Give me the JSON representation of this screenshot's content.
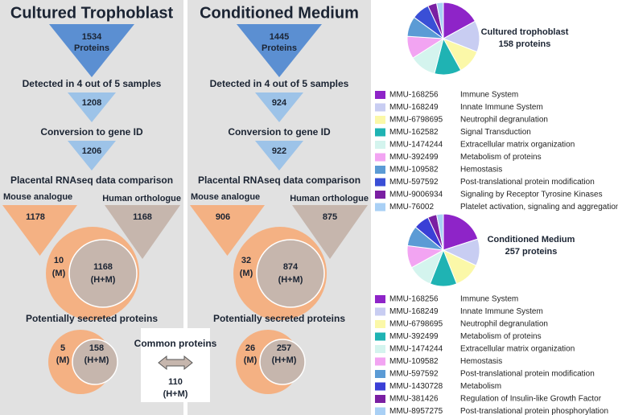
{
  "panels": [
    {
      "title": "Cultured Trophoblast",
      "start_count": 1534,
      "start_label": "Proteins",
      "step1": "Detected in 4 out of 5 samples",
      "count1": 1208,
      "step2": "Conversion to gene ID",
      "count2": 1206,
      "step3": "Placental RNAseq data comparison",
      "mouse_label": "Mouse analogue",
      "human_label": "Human orthologue",
      "mouse_count": 1178,
      "human_count": 1168,
      "overlap_m": 10,
      "overlap_m_tag": "(M)",
      "overlap_hm": 1168,
      "overlap_hm_tag": "(H+M)",
      "step4": "Potentially secreted proteins",
      "secreted_m": 5,
      "secreted_m_tag": "(M)",
      "secreted_hm": 158,
      "secreted_hm_tag": "(H+M)"
    },
    {
      "title": "Conditioned Medium",
      "start_count": 1445,
      "start_label": "Proteins",
      "step1": "Detected in 4 out of 5 samples",
      "count1": 924,
      "step2": "Conversion to gene ID",
      "count2": 922,
      "step3": "Placental RNAseq data comparison",
      "mouse_label": "Mouse analogue",
      "human_label": "Human orthologue",
      "mouse_count": 906,
      "human_count": 875,
      "overlap_m": 32,
      "overlap_m_tag": "(M)",
      "overlap_hm": 874,
      "overlap_hm_tag": "(H+M)",
      "step4": "Potentially secreted proteins",
      "secreted_m": 26,
      "secreted_m_tag": "(M)",
      "secreted_hm": 257,
      "secreted_hm_tag": "(H+M)"
    }
  ],
  "common": {
    "label": "Common proteins",
    "count": 110,
    "tag": "(H+M)"
  },
  "pies": [
    {
      "title": "Cultured trophoblast",
      "subtitle": "158 proteins",
      "items": [
        {
          "id": "MMU-168256",
          "name": "Immune System",
          "color": "#8e24c8",
          "value": 17
        },
        {
          "id": "MMU-168249",
          "name": "Innate Immune System",
          "color": "#c8cdf2",
          "value": 14
        },
        {
          "id": "MMU-6798695",
          "name": "Neutrophil degranulation",
          "color": "#fbf8a8",
          "value": 11
        },
        {
          "id": "MMU-162582",
          "name": "Signal Transduction",
          "color": "#1fb3b3",
          "value": 12
        },
        {
          "id": "MMU-1474244",
          "name": "Extracellular matrix organization",
          "color": "#d4f4ee",
          "value": 12
        },
        {
          "id": "MMU-392499",
          "name": "Metabolism of proteins",
          "color": "#f2a4f2",
          "value": 10
        },
        {
          "id": "MMU-109582",
          "name": "Hemostasis",
          "color": "#5b9bd5",
          "value": 9
        },
        {
          "id": "MMU-597592",
          "name": "Post-translational protein modification",
          "color": "#3a4fd6",
          "value": 8
        },
        {
          "id": "MMU-9006934",
          "name": "Signaling by Receptor Tyrosine Kinases",
          "color": "#7a1fa2",
          "value": 4
        },
        {
          "id": "MMU-76002",
          "name": "Platelet activation, signaling and aggregation",
          "color": "#a9d0f5",
          "value": 3
        }
      ]
    },
    {
      "title": "Conditioned Medium",
      "subtitle": "257 proteins",
      "items": [
        {
          "id": "MMU-168256",
          "name": "Immune System",
          "color": "#8e24c8",
          "value": 20
        },
        {
          "id": "MMU-168249",
          "name": "Innate Immune System",
          "color": "#c8cdf2",
          "value": 12
        },
        {
          "id": "MMU-6798695",
          "name": "Neutrophil degranulation",
          "color": "#fbf8a8",
          "value": 12
        },
        {
          "id": "MMU-392499",
          "name": "Metabolism of proteins",
          "color": "#1fb3b3",
          "value": 12
        },
        {
          "id": "MMU-1474244",
          "name": "Extracellular matrix organization",
          "color": "#d4f4ee",
          "value": 11
        },
        {
          "id": "MMU-109582",
          "name": "Hemostasis",
          "color": "#f2a4f2",
          "value": 10
        },
        {
          "id": "MMU-597592",
          "name": "Post-translational protein modification",
          "color": "#5b9bd5",
          "value": 9
        },
        {
          "id": "MMU-1430728",
          "name": "Metabolism",
          "color": "#3a3fd6",
          "value": 7
        },
        {
          "id": "MMU-381426",
          "name": "Regulation of Insulin-like Growth Factor",
          "color": "#7a1fa2",
          "value": 4
        },
        {
          "id": "MMU-8957275",
          "name": "Post-translational protein phosphorylation",
          "color": "#a9d0f5",
          "value": 3
        }
      ]
    }
  ]
}
